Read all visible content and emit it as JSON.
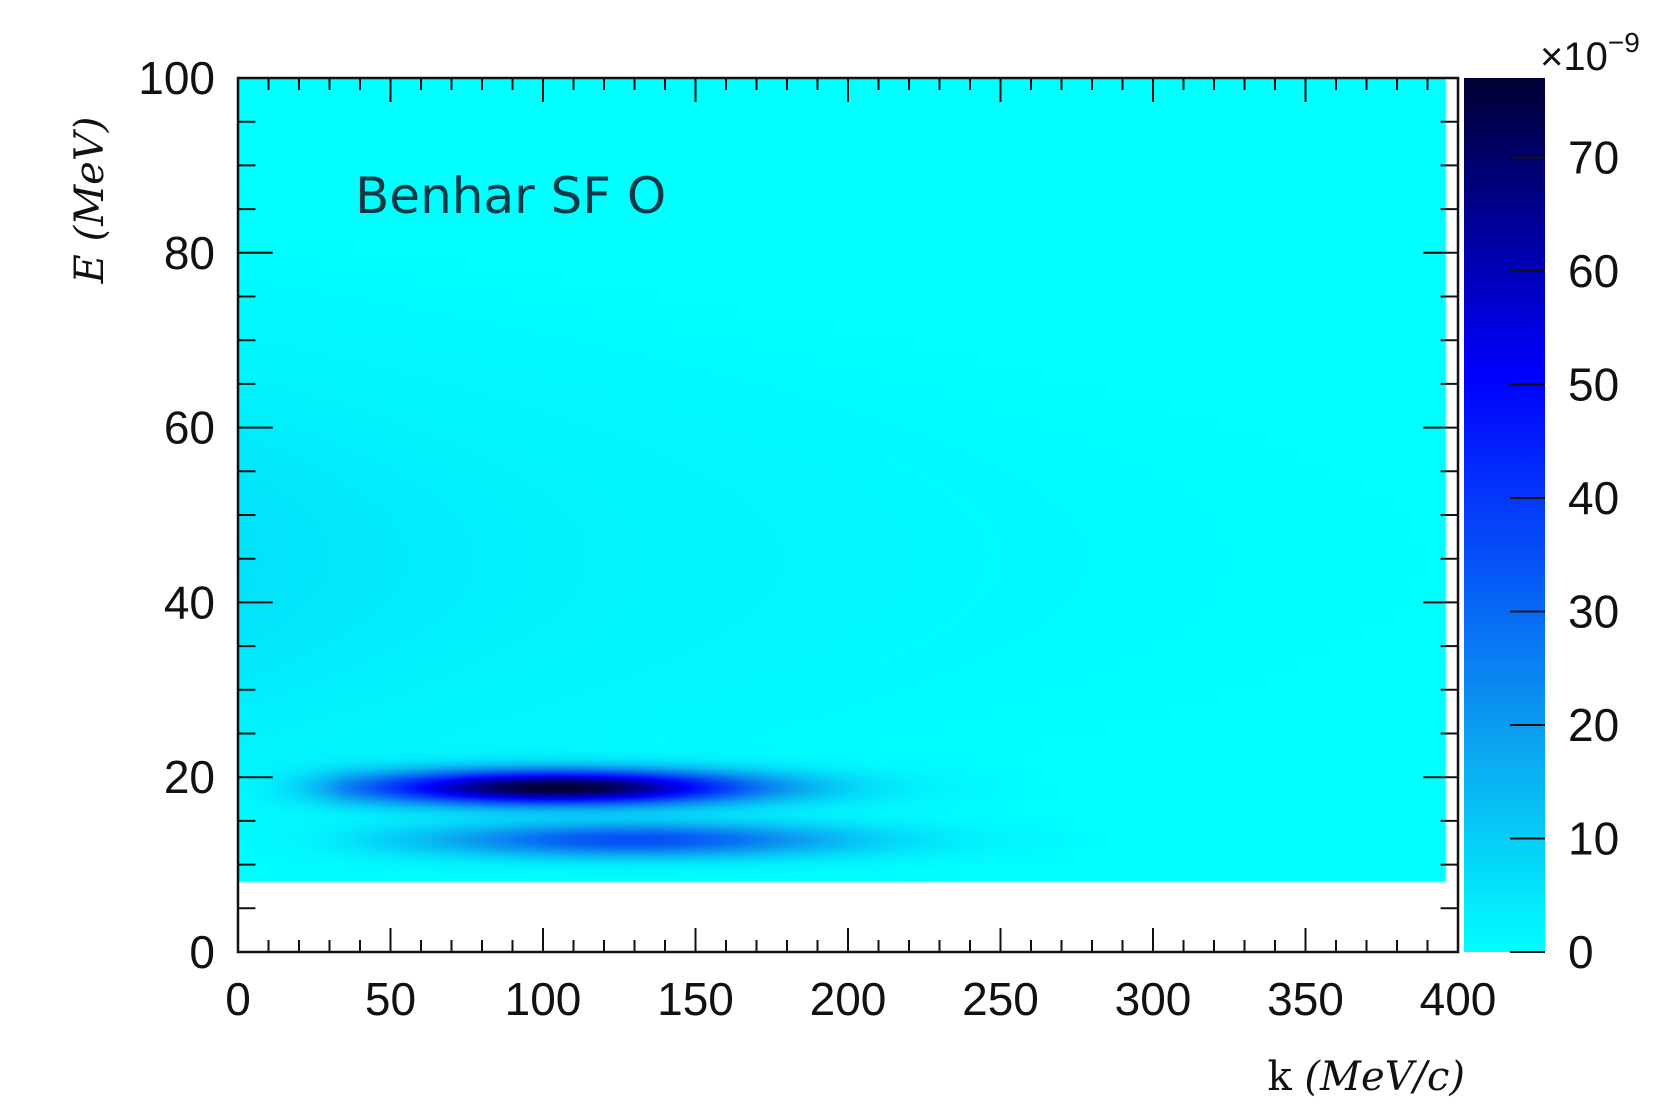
{
  "chart_data": {
    "type": "heatmap",
    "annotation": "Benhar SF O",
    "xlabel": {
      "prefix": "k ",
      "unit": "(MeV/c)"
    },
    "ylabel": {
      "prefix": "E ",
      "unit": "(MeV)"
    },
    "xlim": [
      0,
      400
    ],
    "ylim": [
      0,
      100
    ],
    "x_ticks": [
      0,
      50,
      100,
      150,
      200,
      250,
      300,
      350,
      400
    ],
    "y_ticks": [
      0,
      20,
      40,
      60,
      80,
      100
    ],
    "colorbar": {
      "range": [
        0,
        77
      ],
      "ticks": [
        0,
        10,
        20,
        30,
        40,
        50,
        60,
        70
      ],
      "multiplier_base": "×10",
      "multiplier_exp": "−9",
      "colors": [
        "#00ffff",
        "#0b9ff0",
        "#0000ff",
        "#000033"
      ]
    },
    "data_region": {
      "k_min": 0,
      "k_max": 396,
      "E_min": 8,
      "E_max": 100
    },
    "bands": [
      {
        "E_center": 18.8,
        "E_width": 2.0,
        "k_start": 10,
        "k_peak": 105,
        "k_sigma": 65,
        "peak": 77
      },
      {
        "E_center": 12.8,
        "E_width": 2.0,
        "k_start": 20,
        "k_peak": 130,
        "k_sigma": 70,
        "peak": 35
      }
    ],
    "continuum": {
      "E_center": 45,
      "k_scale": 130,
      "peak": 6
    }
  }
}
